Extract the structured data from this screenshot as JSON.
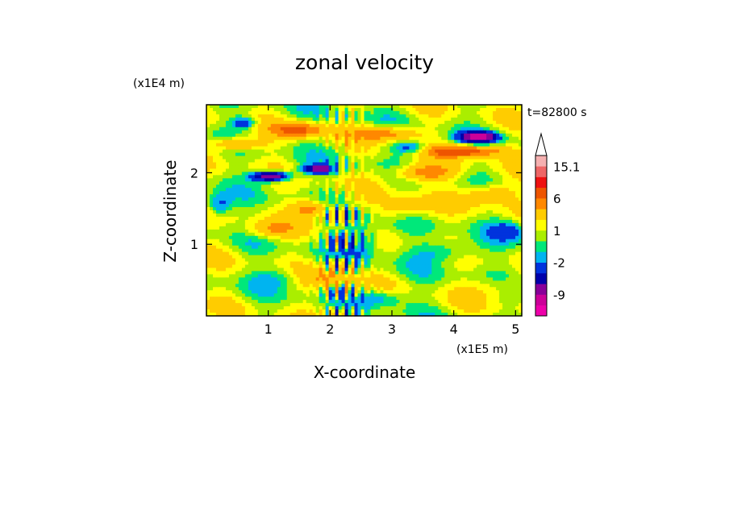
{
  "chart_data": {
    "type": "heatmap",
    "title": "zonal velocity",
    "xlabel": "X-coordinate",
    "ylabel": "Z-coordinate",
    "x_unit": "(x1E5 m)",
    "y_unit": "(x1E4 m)",
    "time_label": "t=82800 s",
    "xlim": [
      0,
      5.1
    ],
    "ylim": [
      0,
      2.95
    ],
    "x_ticks": [
      1,
      2,
      3,
      4,
      5
    ],
    "x_tick_labels": [
      "1",
      "2",
      "3",
      "4",
      "5"
    ],
    "y_ticks": [
      1,
      2
    ],
    "y_tick_labels": [
      "1",
      "2"
    ],
    "colorbar": {
      "levels": [
        -15.1,
        -12,
        -9,
        -6,
        -4,
        -2,
        -1,
        0,
        1,
        2,
        4,
        6,
        9,
        12,
        15.1
      ],
      "colors": [
        "#ee00aa",
        "#cc0099",
        "#880099",
        "#0000aa",
        "#0033dd",
        "#00b4f0",
        "#00e87a",
        "#aaee00",
        "#ffff00",
        "#ffcc00",
        "#ff8800",
        "#ee5500",
        "#ee1111",
        "#ee6666",
        "#f5b0b0"
      ],
      "labels": [
        {
          "value": 15.1,
          "text": "15.1"
        },
        {
          "value": 6,
          "text": "6"
        },
        {
          "value": 1,
          "text": "1"
        },
        {
          "value": -2,
          "text": "-2"
        },
        {
          "value": -9,
          "text": "-9"
        }
      ],
      "extend": "max"
    },
    "features": [
      {
        "x": 1.5,
        "z": 2.6,
        "sign": 1,
        "amp": 6,
        "sx": 0.4,
        "sz": 0.1
      },
      {
        "x": 2.9,
        "z": 2.55,
        "sign": 1,
        "amp": 5,
        "sx": 0.5,
        "sz": 0.1
      },
      {
        "x": 4.2,
        "z": 2.3,
        "sign": 1,
        "amp": 7,
        "sx": 0.6,
        "sz": 0.08
      },
      {
        "x": 0.5,
        "z": 2.4,
        "sign": 1,
        "amp": 5,
        "sx": 0.4,
        "sz": 0.09
      },
      {
        "x": 1.7,
        "z": 1.5,
        "sign": 1,
        "amp": 5,
        "sx": 0.3,
        "sz": 0.12
      },
      {
        "x": 3.5,
        "z": 2.0,
        "sign": 1,
        "amp": 5,
        "sx": 0.5,
        "sz": 0.12
      },
      {
        "x": 4.6,
        "z": 1.7,
        "sign": 1,
        "amp": 4,
        "sx": 0.4,
        "sz": 0.15
      },
      {
        "x": 3.2,
        "z": 1.5,
        "sign": 1,
        "amp": 3,
        "sx": 0.4,
        "sz": 0.15
      },
      {
        "x": 1.0,
        "z": 1.2,
        "sign": 1,
        "amp": 3,
        "sx": 0.4,
        "sz": 0.12
      },
      {
        "x": 2.0,
        "z": 0.55,
        "sign": 1,
        "amp": 3,
        "sx": 0.4,
        "sz": 0.15
      },
      {
        "x": 4.8,
        "z": 0.4,
        "sign": 1,
        "amp": 2,
        "sx": 0.5,
        "sz": 0.15
      },
      {
        "x": 1.05,
        "z": 1.95,
        "sign": -1,
        "amp": 11,
        "sx": 0.3,
        "sz": 0.07
      },
      {
        "x": 1.8,
        "z": 2.05,
        "sign": -1,
        "amp": 8,
        "sx": 0.25,
        "sz": 0.06
      },
      {
        "x": 4.4,
        "z": 2.5,
        "sign": -1,
        "amp": 11,
        "sx": 0.3,
        "sz": 0.07
      },
      {
        "x": 3.3,
        "z": 2.35,
        "sign": -1,
        "amp": 4,
        "sx": 0.3,
        "sz": 0.08
      },
      {
        "x": 0.6,
        "z": 2.7,
        "sign": -1,
        "amp": 5,
        "sx": 0.2,
        "sz": 0.08
      },
      {
        "x": 2.5,
        "z": 1.05,
        "sign": -1,
        "amp": 4,
        "sx": 0.3,
        "sz": 0.25
      },
      {
        "x": 3.9,
        "z": 0.9,
        "sign": -1,
        "amp": 3,
        "sx": 0.5,
        "sz": 0.15
      },
      {
        "x": 0.2,
        "z": 1.55,
        "sign": -1,
        "amp": 4,
        "sx": 0.2,
        "sz": 0.15
      },
      {
        "x": 4.9,
        "z": 1.2,
        "sign": -1,
        "amp": 3,
        "sx": 0.3,
        "sz": 0.15
      },
      {
        "x": 2.8,
        "z": 0.25,
        "sign": -1,
        "amp": 3,
        "sx": 0.4,
        "sz": 0.12
      },
      {
        "x": 1.2,
        "z": 0.55,
        "sign": -1,
        "amp": 2,
        "sx": 0.4,
        "sz": 0.15
      }
    ]
  }
}
